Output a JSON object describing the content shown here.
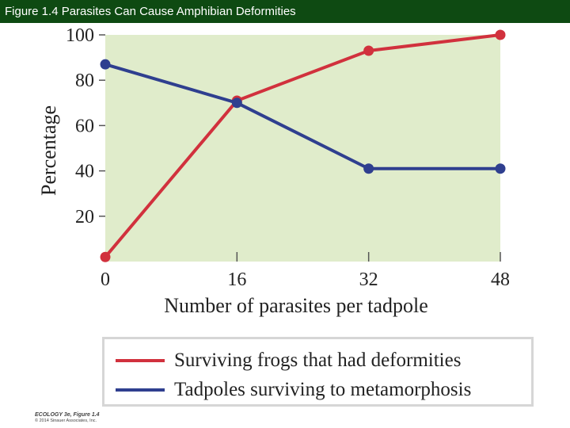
{
  "header": {
    "title": "Figure 1.4 Parasites Can Cause Amphibian Deformities"
  },
  "chart_data": {
    "type": "line",
    "x": [
      0,
      16,
      32,
      48
    ],
    "xlabel": "Number of parasites per tadpole",
    "ylabel": "Percentage",
    "xlim": [
      0,
      48
    ],
    "ylim": [
      0,
      100
    ],
    "xticks": [
      "0",
      "16",
      "32",
      "48"
    ],
    "yticks": [
      "20",
      "40",
      "60",
      "80",
      "100"
    ],
    "plot_background": "#e0eccb",
    "grid": false,
    "legend_position": "bottom",
    "series": [
      {
        "name": "Surviving frogs that had deformities",
        "color": "#d1313d",
        "values": [
          2,
          71,
          93,
          100
        ]
      },
      {
        "name": "Tadpoles surviving to metamorphosis",
        "color": "#2f3f8f",
        "values": [
          87,
          70,
          41,
          41
        ]
      }
    ]
  },
  "footer": {
    "credit_line1": "ECOLOGY 3e, Figure 1.4",
    "credit_line2": "© 2014 Sinauer Associates, Inc."
  }
}
